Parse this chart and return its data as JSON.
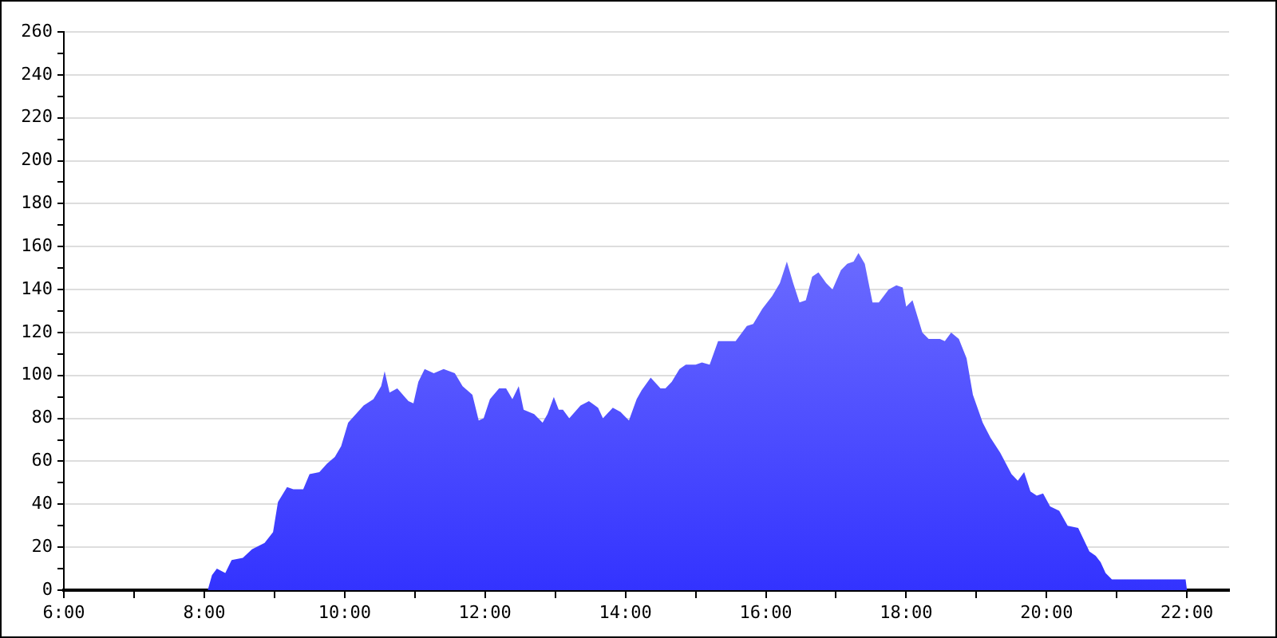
{
  "chart_data": {
    "type": "area",
    "x": [
      6,
      8.05,
      8.11,
      8.18,
      8.3,
      8.39,
      8.55,
      8.68,
      8.86,
      8.98,
      9.05,
      9.18,
      9.27,
      9.41,
      9.5,
      9.64,
      9.75,
      9.86,
      9.95,
      10.05,
      10.16,
      10.27,
      10.41,
      10.52,
      10.57,
      10.64,
      10.75,
      10.91,
      10.98,
      11.05,
      11.14,
      11.27,
      11.41,
      11.57,
      11.68,
      11.82,
      11.91,
      11.98,
      12.07,
      12.2,
      12.3,
      12.39,
      12.48,
      12.55,
      12.7,
      12.82,
      12.89,
      12.98,
      13.05,
      13.11,
      13.2,
      13.36,
      13.48,
      13.61,
      13.68,
      13.82,
      13.93,
      14.05,
      14.16,
      14.23,
      14.36,
      14.5,
      14.57,
      14.66,
      14.77,
      14.86,
      15,
      15.09,
      15.2,
      15.32,
      15.41,
      15.57,
      15.73,
      15.82,
      15.95,
      16.09,
      16.2,
      16.3,
      16.39,
      16.48,
      16.57,
      16.66,
      16.75,
      16.86,
      16.95,
      17.07,
      17.16,
      17.25,
      17.32,
      17.41,
      17.52,
      17.61,
      17.75,
      17.86,
      17.95,
      18,
      18.09,
      18.23,
      18.32,
      18.48,
      18.55,
      18.64,
      18.75,
      18.86,
      18.95,
      19.09,
      19.2,
      19.34,
      19.5,
      19.59,
      19.68,
      19.77,
      19.86,
      19.95,
      20.05,
      20.18,
      20.3,
      20.45,
      20.61,
      20.7,
      20.77,
      20.84,
      20.93,
      21.98,
      22
    ],
    "series": [
      {
        "color": "#3333ff",
        "values": [
          0,
          0,
          7,
          10,
          8,
          14,
          15,
          19,
          22,
          27,
          41,
          48,
          47,
          47,
          54,
          55,
          59,
          62,
          67,
          78,
          82,
          86,
          89,
          95,
          102,
          92,
          94,
          88,
          87,
          97,
          103,
          101,
          103,
          101,
          95,
          91,
          79,
          80,
          89,
          94,
          94,
          89,
          95,
          84,
          82,
          78,
          82,
          90,
          84,
          84,
          80,
          86,
          88,
          85,
          80,
          85,
          83,
          79,
          89,
          93,
          99,
          94,
          94,
          97,
          103,
          105,
          105,
          106,
          105,
          116,
          116,
          116,
          123,
          124,
          131,
          137,
          143,
          153,
          143,
          134,
          135,
          146,
          148,
          143,
          140,
          149,
          152,
          153,
          157,
          152,
          134,
          134,
          140,
          142,
          141,
          132,
          135,
          120,
          117,
          117,
          116,
          120,
          117,
          108,
          91,
          78,
          71,
          64,
          54,
          51,
          55,
          46,
          44,
          45,
          39,
          37,
          30,
          29,
          18,
          16,
          13,
          8,
          5,
          5,
          0
        ]
      }
    ],
    "xlim": [
      6,
      22.6
    ],
    "xticks": [
      {
        "value": 6,
        "label": "6:00"
      },
      {
        "value": 7,
        "label": null
      },
      {
        "value": 8,
        "label": "8:00"
      },
      {
        "value": 9,
        "label": null
      },
      {
        "value": 10,
        "label": "10:00"
      },
      {
        "value": 11,
        "label": null
      },
      {
        "value": 12,
        "label": "12:00"
      },
      {
        "value": 13,
        "label": null
      },
      {
        "value": 14,
        "label": "14:00"
      },
      {
        "value": 15,
        "label": null
      },
      {
        "value": 16,
        "label": "16:00"
      },
      {
        "value": 17,
        "label": null
      },
      {
        "value": 18,
        "label": "18:00"
      },
      {
        "value": 19,
        "label": null
      },
      {
        "value": 20,
        "label": "20:00"
      },
      {
        "value": 21,
        "label": null
      },
      {
        "value": 22,
        "label": "22:00"
      }
    ],
    "ylim": [
      0,
      260
    ],
    "yticks": [
      0,
      {
        "value": 10,
        "label": null
      },
      20,
      {
        "value": 30,
        "label": null
      },
      40,
      {
        "value": 50,
        "label": null
      },
      60,
      {
        "value": 70,
        "label": null
      },
      80,
      {
        "value": 90,
        "label": null
      },
      100,
      {
        "value": 110,
        "label": null
      },
      120,
      {
        "value": 130,
        "label": null
      },
      140,
      {
        "value": 150,
        "label": null
      },
      160,
      {
        "value": 170,
        "label": null
      },
      180,
      {
        "value": 190,
        "label": null
      },
      200,
      {
        "value": 210,
        "label": null
      },
      220,
      {
        "value": 230,
        "label": null
      },
      240,
      {
        "value": 250,
        "label": null
      },
      260
    ],
    "grid": "y",
    "legend": false,
    "marker": "none"
  }
}
